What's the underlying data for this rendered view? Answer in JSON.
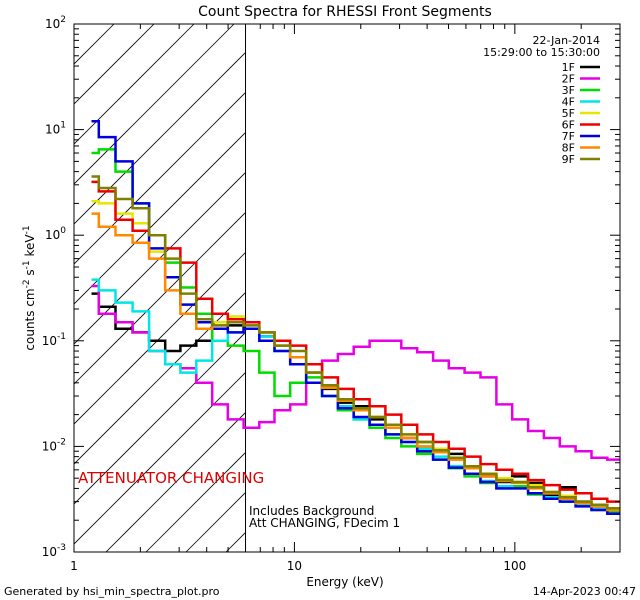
{
  "chart_data": {
    "type": "line",
    "title": "Count Spectra for RHESSI Front Segments",
    "xlabel": "Energy (keV)",
    "ylabel_parts": [
      "counts cm",
      "-2",
      " s",
      "-1",
      " keV",
      "-1"
    ],
    "xscale": "log",
    "yscale": "log",
    "xlim": [
      1,
      300
    ],
    "ylim": [
      0.001,
      100
    ],
    "x_ticks": [
      {
        "v": 1,
        "label": "1"
      },
      {
        "v": 10,
        "label": "10"
      },
      {
        "v": 100,
        "label": "100"
      }
    ],
    "y_ticks": [
      {
        "v": 0.001,
        "base": "10",
        "exp": "-3"
      },
      {
        "v": 0.01,
        "base": "10",
        "exp": "-2"
      },
      {
        "v": 0.1,
        "base": "10",
        "exp": "-1"
      },
      {
        "v": 1,
        "base": "10",
        "exp": "0"
      },
      {
        "v": 10,
        "base": "10",
        "exp": "1"
      },
      {
        "v": 100,
        "base": "10",
        "exp": "2"
      }
    ],
    "attenuator_boundary_kev": 6,
    "date": "22-Jan-2014",
    "time_range": "15:29:00 to 15:30:00",
    "attenuator_label": "ATTENUATOR CHANGING",
    "notes": [
      "Includes Background",
      "Att CHANGING, FDecim 1"
    ],
    "footer_left": "Generated by hsi_min_spectra_plot.pro",
    "footer_right": "14-Apr-2023 00:47",
    "series": [
      {
        "name": "1F",
        "color": "#000000",
        "x": [
          1.2,
          1.4,
          1.7,
          2.0,
          2.4,
          2.8,
          3.3,
          3.9,
          4.6,
          5.4,
          6.4,
          7.5,
          8.8,
          10.4,
          12.3,
          14.5,
          17.1,
          20.2,
          23.8,
          28.1,
          33.2,
          39.2,
          46.2,
          54.5,
          64.3,
          75.9,
          89.6,
          105.7,
          124.7,
          147.2,
          173.7,
          205.0,
          241.9,
          285.5
        ],
        "y": [
          0.28,
          0.21,
          0.13,
          0.12,
          0.1,
          0.08,
          0.09,
          0.1,
          0.13,
          0.14,
          0.13,
          0.11,
          0.1,
          0.07,
          0.05,
          0.035,
          0.026,
          0.024,
          0.018,
          0.015,
          0.012,
          0.011,
          0.009,
          0.0085,
          0.0065,
          0.0052,
          0.0046,
          0.0052,
          0.0045,
          0.0034,
          0.0041,
          0.003,
          0.0028,
          0.0026
        ]
      },
      {
        "name": "2F",
        "color": "#e600e6",
        "x": [
          1.2,
          1.4,
          1.7,
          2.0,
          2.4,
          2.8,
          3.3,
          3.9,
          4.6,
          5.4,
          6.4,
          7.5,
          8.8,
          10.4,
          12.3,
          14.5,
          17.1,
          20.2,
          23.8,
          28.1,
          33.2,
          39.2,
          46.2,
          54.5,
          64.3,
          75.9,
          89.6,
          105.7,
          124.7,
          147.2,
          173.7,
          205.0,
          241.9,
          285.5
        ],
        "y": [
          0.33,
          0.18,
          0.15,
          0.12,
          0.08,
          0.06,
          0.055,
          0.04,
          0.025,
          0.018,
          0.015,
          0.017,
          0.022,
          0.025,
          0.05,
          0.065,
          0.075,
          0.088,
          0.1,
          0.1,
          0.085,
          0.078,
          0.065,
          0.055,
          0.05,
          0.045,
          0.025,
          0.018,
          0.014,
          0.012,
          0.01,
          0.009,
          0.0078,
          0.0075
        ]
      },
      {
        "name": "3F",
        "color": "#00dd00",
        "x": [
          1.2,
          1.4,
          1.7,
          2.0,
          2.4,
          2.8,
          3.3,
          3.9,
          4.6,
          5.4,
          6.4,
          7.5,
          8.8,
          10.4,
          12.3,
          14.5,
          17.1,
          20.2,
          23.8,
          28.1,
          33.2,
          39.2,
          46.2,
          54.5,
          64.3,
          75.9,
          89.6,
          105.7,
          124.7,
          147.2,
          173.7,
          205.0,
          241.9,
          285.5
        ],
        "y": [
          6.0,
          6.5,
          4.0,
          2.0,
          1.0,
          0.55,
          0.32,
          0.18,
          0.1,
          0.09,
          0.08,
          0.05,
          0.03,
          0.04,
          0.045,
          0.03,
          0.022,
          0.018,
          0.015,
          0.012,
          0.01,
          0.0085,
          0.0075,
          0.0062,
          0.0052,
          0.0045,
          0.004,
          0.0042,
          0.0035,
          0.0033,
          0.003,
          0.0028,
          0.0025,
          0.0024
        ]
      },
      {
        "name": "4F",
        "color": "#00e6e6",
        "x": [
          1.2,
          1.4,
          1.7,
          2.0,
          2.4,
          2.8,
          3.3,
          3.9,
          4.6,
          5.4,
          6.4,
          7.5,
          8.8,
          10.4,
          12.3,
          14.5,
          17.1,
          20.2,
          23.8,
          28.1,
          33.2,
          39.2,
          46.2,
          54.5,
          64.3,
          75.9,
          89.6,
          105.7,
          124.7,
          147.2,
          173.7,
          205.0,
          241.9,
          285.5
        ],
        "y": [
          0.38,
          0.3,
          0.23,
          0.19,
          0.08,
          0.06,
          0.05,
          0.065,
          0.1,
          0.12,
          0.13,
          0.11,
          0.08,
          0.06,
          0.04,
          0.03,
          0.024,
          0.018,
          0.016,
          0.013,
          0.011,
          0.0095,
          0.008,
          0.0065,
          0.0055,
          0.0047,
          0.0042,
          0.004,
          0.0036,
          0.0033,
          0.003,
          0.0028,
          0.0026,
          0.0025
        ]
      },
      {
        "name": "5F",
        "color": "#e6e600",
        "x": [
          1.2,
          1.4,
          1.7,
          2.0,
          2.4,
          2.8,
          3.3,
          3.9,
          4.6,
          5.4,
          6.4,
          7.5,
          8.8,
          10.4,
          12.3,
          14.5,
          17.1,
          20.2,
          23.8,
          28.1,
          33.2,
          39.2,
          46.2,
          54.5,
          64.3,
          75.9,
          89.6,
          105.7,
          124.7,
          147.2,
          173.7,
          205.0,
          241.9,
          285.5
        ],
        "y": [
          2.1,
          2.0,
          1.6,
          1.3,
          0.7,
          0.4,
          0.22,
          0.15,
          0.15,
          0.17,
          0.15,
          0.12,
          0.09,
          0.07,
          0.05,
          0.036,
          0.028,
          0.022,
          0.019,
          0.016,
          0.013,
          0.011,
          0.0095,
          0.0078,
          0.0065,
          0.0055,
          0.005,
          0.0046,
          0.0043,
          0.0037,
          0.0034,
          0.003,
          0.0028,
          0.0026
        ]
      },
      {
        "name": "6F",
        "color": "#ee0000",
        "x": [
          1.2,
          1.4,
          1.7,
          2.0,
          2.4,
          2.8,
          3.3,
          3.9,
          4.6,
          5.4,
          6.4,
          7.5,
          8.8,
          10.4,
          12.3,
          14.5,
          17.1,
          20.2,
          23.8,
          28.1,
          33.2,
          39.2,
          46.2,
          54.5,
          64.3,
          75.9,
          89.6,
          105.7,
          124.7,
          147.2,
          173.7,
          205.0,
          241.9,
          285.5
        ],
        "y": [
          3.2,
          2.6,
          1.4,
          1.1,
          1.0,
          0.75,
          0.55,
          0.25,
          0.18,
          0.16,
          0.15,
          0.12,
          0.1,
          0.09,
          0.06,
          0.045,
          0.035,
          0.028,
          0.024,
          0.02,
          0.016,
          0.013,
          0.011,
          0.0095,
          0.008,
          0.0068,
          0.006,
          0.0055,
          0.0048,
          0.0043,
          0.0039,
          0.0036,
          0.0032,
          0.003
        ]
      },
      {
        "name": "7F",
        "color": "#0000dd",
        "x": [
          1.2,
          1.4,
          1.7,
          2.0,
          2.4,
          2.8,
          3.3,
          3.9,
          4.6,
          5.4,
          6.4,
          7.5,
          8.8,
          10.4,
          12.3,
          14.5,
          17.1,
          20.2,
          23.8,
          28.1,
          33.2,
          39.2,
          46.2,
          54.5,
          64.3,
          75.9,
          89.6,
          105.7,
          124.7,
          147.2,
          173.7,
          205.0,
          241.9,
          285.5
        ],
        "y": [
          12.0,
          8.5,
          5.0,
          2.0,
          0.75,
          0.4,
          0.22,
          0.15,
          0.13,
          0.12,
          0.13,
          0.1,
          0.08,
          0.06,
          0.04,
          0.03,
          0.023,
          0.019,
          0.016,
          0.013,
          0.011,
          0.009,
          0.0075,
          0.0063,
          0.0055,
          0.0046,
          0.004,
          0.004,
          0.0036,
          0.0032,
          0.003,
          0.0027,
          0.0025,
          0.0023
        ]
      },
      {
        "name": "8F",
        "color": "#ff8800",
        "x": [
          1.2,
          1.4,
          1.7,
          2.0,
          2.4,
          2.8,
          3.3,
          3.9,
          4.6,
          5.4,
          6.4,
          7.5,
          8.8,
          10.4,
          12.3,
          14.5,
          17.1,
          20.2,
          23.8,
          28.1,
          33.2,
          39.2,
          46.2,
          54.5,
          64.3,
          75.9,
          89.6,
          105.7,
          124.7,
          147.2,
          173.7,
          205.0,
          241.9,
          285.5
        ],
        "y": [
          1.6,
          1.2,
          1.0,
          0.85,
          0.6,
          0.3,
          0.18,
          0.13,
          0.14,
          0.15,
          0.14,
          0.12,
          0.09,
          0.07,
          0.05,
          0.036,
          0.027,
          0.022,
          0.019,
          0.015,
          0.012,
          0.01,
          0.0088,
          0.0075,
          0.0062,
          0.0052,
          0.0047,
          0.0045,
          0.004,
          0.0036,
          0.0032,
          0.0029,
          0.0027,
          0.0025
        ]
      },
      {
        "name": "9F",
        "color": "#808000",
        "x": [
          1.2,
          1.4,
          1.7,
          2.0,
          2.4,
          2.8,
          3.3,
          3.9,
          4.6,
          5.4,
          6.4,
          7.5,
          8.8,
          10.4,
          12.3,
          14.5,
          17.1,
          20.2,
          23.8,
          28.1,
          33.2,
          39.2,
          46.2,
          54.5,
          64.3,
          75.9,
          89.6,
          105.7,
          124.7,
          147.2,
          173.7,
          205.0,
          241.9,
          285.5
        ],
        "y": [
          3.6,
          2.8,
          2.2,
          1.8,
          1.0,
          0.6,
          0.28,
          0.16,
          0.14,
          0.15,
          0.14,
          0.12,
          0.09,
          0.08,
          0.05,
          0.038,
          0.028,
          0.023,
          0.019,
          0.016,
          0.013,
          0.011,
          0.0092,
          0.0078,
          0.0065,
          0.0055,
          0.0048,
          0.0046,
          0.0041,
          0.0037,
          0.0033,
          0.003,
          0.0028,
          0.0026
        ]
      }
    ]
  }
}
